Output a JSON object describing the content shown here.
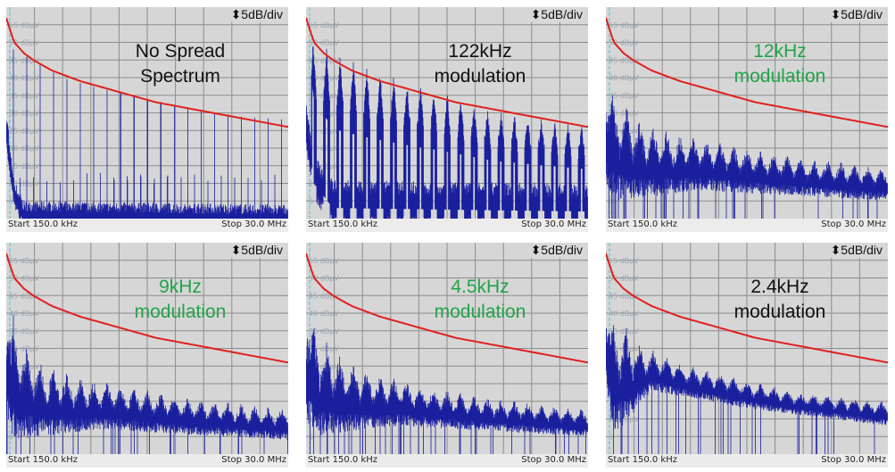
{
  "chart_data": [
    {
      "type": "line",
      "title": "No Spread Spectrum",
      "title_color": "#111111",
      "scale_label": "5dB/div",
      "x_start_label": "Start 150.0 kHz",
      "x_stop_label": "Stop 30.0 MHz",
      "xlim": [
        0.15,
        30
      ],
      "ylim": [
        0,
        60
      ],
      "yticks": [
        "55 dBµV",
        "50 dBµV",
        "45 dBµV",
        "40 dBµV",
        "35 dBµV",
        "30 dBµV",
        "25 dBµV",
        "20 dBµV",
        "15 dBµV",
        "10 dBµV",
        "5"
      ],
      "mode": "harmonics",
      "harmonic_spacing_mhz": 1.42,
      "limit_line": [
        [
          0.15,
          57
        ],
        [
          0.5,
          54
        ],
        [
          1,
          50
        ],
        [
          2,
          47
        ],
        [
          3,
          45
        ],
        [
          5,
          42
        ],
        [
          8,
          39
        ],
        [
          12,
          36
        ],
        [
          16,
          33
        ],
        [
          20,
          31
        ],
        [
          25,
          28.5
        ],
        [
          30,
          26
        ]
      ],
      "peak_envelope": [
        [
          0.9,
          48
        ],
        [
          3,
          45
        ],
        [
          6,
          40
        ],
        [
          10,
          37
        ],
        [
          15,
          34
        ],
        [
          20,
          31
        ],
        [
          25,
          29
        ],
        [
          30,
          28
        ]
      ],
      "floor_envelope": [
        [
          0.15,
          25
        ],
        [
          1,
          8
        ],
        [
          2,
          2
        ],
        [
          30,
          1
        ]
      ]
    },
    {
      "type": "line",
      "title": "122kHz modulation",
      "title_color": "#111111",
      "scale_label": "5dB/div",
      "x_start_label": "Start 150.0 kHz",
      "x_stop_label": "Stop 30.0 MHz",
      "xlim": [
        0.15,
        30
      ],
      "ylim": [
        0,
        60
      ],
      "yticks": [
        "55 dBµV",
        "50 dBµV",
        "45 dBµV",
        "40 dBµV",
        "35 dBµV",
        "30 dBµV",
        "25 dBµV",
        "20 dBµV",
        "15 dBµV",
        "10 dBµV",
        "5"
      ],
      "mode": "wide-harmonics",
      "harmonic_spacing_mhz": 1.42,
      "limit_line": [
        [
          0.15,
          57
        ],
        [
          0.5,
          54
        ],
        [
          1,
          50
        ],
        [
          2,
          47
        ],
        [
          3,
          45
        ],
        [
          5,
          42
        ],
        [
          8,
          39
        ],
        [
          12,
          36
        ],
        [
          16,
          33
        ],
        [
          20,
          31
        ],
        [
          25,
          28.5
        ],
        [
          30,
          26
        ]
      ],
      "peak_envelope": [
        [
          0.9,
          48
        ],
        [
          3,
          45
        ],
        [
          6,
          41
        ],
        [
          10,
          37
        ],
        [
          15,
          33
        ],
        [
          20,
          28
        ],
        [
          25,
          26
        ],
        [
          30,
          24
        ]
      ],
      "floor_envelope": [
        [
          0.15,
          25
        ],
        [
          1,
          10
        ],
        [
          3,
          3
        ],
        [
          30,
          2
        ]
      ]
    },
    {
      "type": "line",
      "title": "12kHz modulation",
      "title_color": "#22a34a",
      "scale_label": "5dB/div",
      "x_start_label": "Start 150.0 kHz",
      "x_stop_label": "Stop 30.0 MHz",
      "xlim": [
        0.15,
        30
      ],
      "ylim": [
        0,
        60
      ],
      "yticks": [
        "55 dBµV",
        "50 dBµV",
        "45 dBµV",
        "40 dBµV",
        "35 dBµV",
        "30 dBµV",
        "25 dBµV",
        "20 dBµV",
        "15 dBµV",
        "10 dBµV",
        "5"
      ],
      "mode": "spread",
      "harmonic_spacing_mhz": 1.42,
      "limit_line": [
        [
          0.15,
          57
        ],
        [
          0.5,
          54
        ],
        [
          1,
          50
        ],
        [
          2,
          47
        ],
        [
          3,
          45
        ],
        [
          5,
          42
        ],
        [
          8,
          39
        ],
        [
          12,
          36
        ],
        [
          16,
          33
        ],
        [
          20,
          31
        ],
        [
          25,
          28.5
        ],
        [
          30,
          26
        ]
      ],
      "peak_envelope": [
        [
          0.9,
          37
        ],
        [
          2,
          33
        ],
        [
          4,
          28
        ],
        [
          8,
          24
        ],
        [
          14,
          21
        ],
        [
          20,
          18
        ],
        [
          30,
          15
        ]
      ],
      "floor_envelope": [
        [
          0.15,
          10
        ],
        [
          1,
          5
        ],
        [
          10,
          8
        ],
        [
          30,
          5
        ]
      ]
    },
    {
      "type": "line",
      "title": "9kHz modulation",
      "title_color": "#22a34a",
      "scale_label": "5dB/div",
      "x_start_label": "Start 150.0 kHz",
      "x_stop_label": "Stop 30.0 MHz",
      "xlim": [
        0.15,
        30
      ],
      "ylim": [
        0,
        60
      ],
      "yticks": [
        "55 dBµV",
        "50 dBµV",
        "45 dBµV",
        "40 dBµV",
        "35 dBµV",
        "30 dBµV",
        "25 dBµV",
        "20 dBµV",
        "15 dBµV",
        "10 dBµV",
        "5"
      ],
      "mode": "spread",
      "harmonic_spacing_mhz": 1.42,
      "limit_line": [
        [
          0.15,
          57
        ],
        [
          0.5,
          54
        ],
        [
          1,
          50
        ],
        [
          2,
          47
        ],
        [
          3,
          45
        ],
        [
          5,
          42
        ],
        [
          8,
          39
        ],
        [
          12,
          36
        ],
        [
          16,
          33
        ],
        [
          20,
          31
        ],
        [
          25,
          28.5
        ],
        [
          30,
          26
        ]
      ],
      "peak_envelope": [
        [
          0.9,
          40
        ],
        [
          2,
          32
        ],
        [
          4,
          27
        ],
        [
          8,
          22
        ],
        [
          14,
          19
        ],
        [
          20,
          16
        ],
        [
          30,
          13
        ]
      ],
      "floor_envelope": [
        [
          0.15,
          10
        ],
        [
          1,
          4
        ],
        [
          10,
          7
        ],
        [
          30,
          4
        ]
      ]
    },
    {
      "type": "line",
      "title": "4.5kHz modulation",
      "title_color": "#22a34a",
      "scale_label": "5dB/div",
      "x_start_label": "Start 150.0 kHz",
      "x_stop_label": "Stop 30.0 MHz",
      "xlim": [
        0.15,
        30
      ],
      "ylim": [
        0,
        60
      ],
      "yticks": [
        "55 dBµV",
        "50 dBµV",
        "45 dBµV",
        "40 dBµV",
        "35 dBµV",
        "30 dBµV",
        "25 dBµV",
        "20 dBµV",
        "15 dBµV",
        "10 dBµV",
        "5"
      ],
      "mode": "spread",
      "harmonic_spacing_mhz": 1.42,
      "limit_line": [
        [
          0.15,
          57
        ],
        [
          0.5,
          54
        ],
        [
          1,
          50
        ],
        [
          2,
          47
        ],
        [
          3,
          45
        ],
        [
          5,
          42
        ],
        [
          8,
          39
        ],
        [
          12,
          36
        ],
        [
          16,
          33
        ],
        [
          20,
          31
        ],
        [
          25,
          28.5
        ],
        [
          30,
          26
        ]
      ],
      "peak_envelope": [
        [
          0.9,
          40
        ],
        [
          2,
          33
        ],
        [
          4,
          28
        ],
        [
          8,
          23
        ],
        [
          14,
          19
        ],
        [
          20,
          16
        ],
        [
          30,
          13
        ]
      ],
      "floor_envelope": [
        [
          0.15,
          10
        ],
        [
          1,
          5
        ],
        [
          10,
          8
        ],
        [
          30,
          5
        ]
      ]
    },
    {
      "type": "line",
      "title": "2.4kHz modulation",
      "title_color": "#111111",
      "scale_label": "5dB/div",
      "x_start_label": "Start 150.0 kHz",
      "x_stop_label": "Stop 30.0 MHz",
      "xlim": [
        0.15,
        30
      ],
      "ylim": [
        0,
        60
      ],
      "yticks": [
        "55 dBµV",
        "50 dBµV",
        "45 dBµV",
        "40 dBµV",
        "35 dBµV",
        "30 dBµV",
        "25 dBµV",
        "20 dBµV",
        "15 dBµV",
        "10 dBµV",
        "5"
      ],
      "mode": "spread",
      "harmonic_spacing_mhz": 1.42,
      "limit_line": [
        [
          0.15,
          57
        ],
        [
          0.5,
          54
        ],
        [
          1,
          50
        ],
        [
          2,
          47
        ],
        [
          3,
          45
        ],
        [
          5,
          42
        ],
        [
          8,
          39
        ],
        [
          12,
          36
        ],
        [
          16,
          33
        ],
        [
          20,
          31
        ],
        [
          25,
          28.5
        ],
        [
          30,
          26
        ]
      ],
      "peak_envelope": [
        [
          0.9,
          41
        ],
        [
          2,
          37
        ],
        [
          4,
          31
        ],
        [
          8,
          26
        ],
        [
          14,
          22
        ],
        [
          20,
          18
        ],
        [
          30,
          15
        ]
      ],
      "floor_envelope": [
        [
          0.15,
          20
        ],
        [
          1,
          5
        ],
        [
          5,
          18
        ],
        [
          15,
          13
        ],
        [
          30,
          8
        ]
      ]
    }
  ],
  "colors": {
    "background": "#d6d6d6",
    "grid": "#8c8c8c",
    "trace": "#1a1f9e",
    "limit": "#e0201e",
    "marker": "#5fc8d8"
  }
}
